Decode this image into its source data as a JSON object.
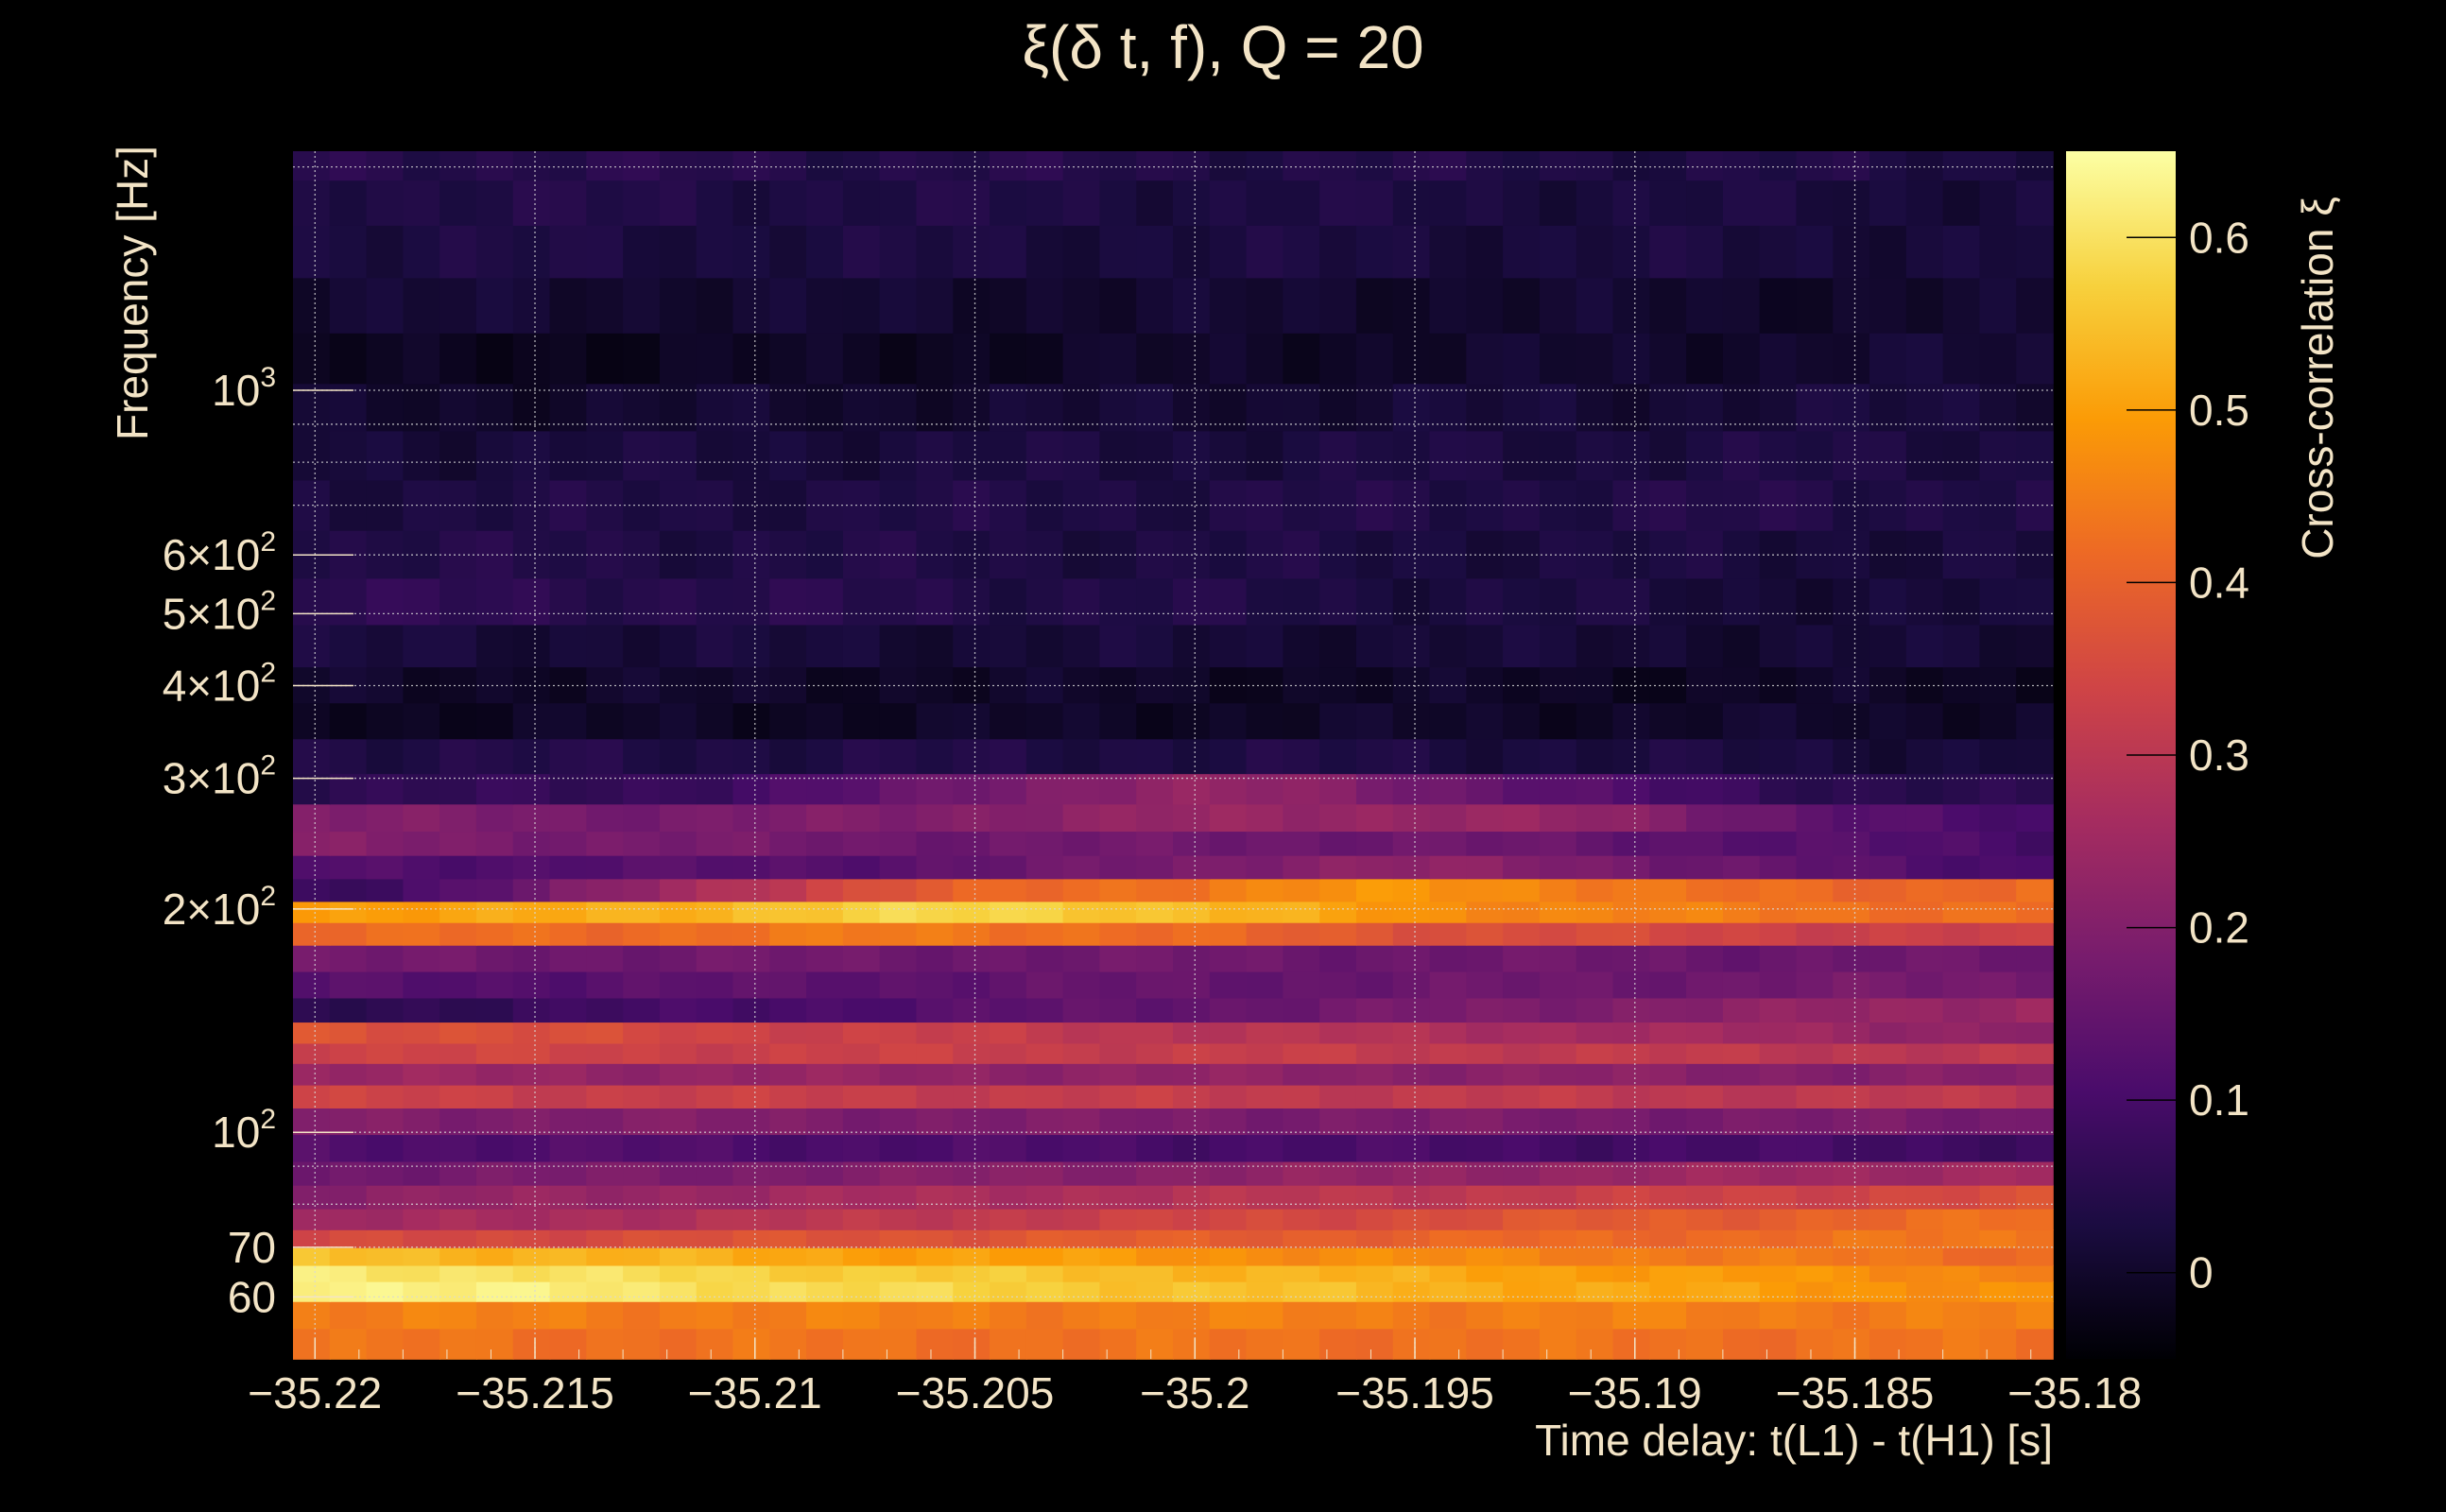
{
  "chart_data": {
    "type": "heatmap",
    "title": "ξ(δ t, f), Q = 20",
    "xlabel": "Time delay: t(L1) - t(H1) [s]",
    "ylabel": "Frequency [Hz]",
    "colorbar_label": "Cross-correlation ξ",
    "xlim": [
      -35.2205,
      -35.1805
    ],
    "ylim": [
      49.5,
      2100
    ],
    "yscale": "log",
    "grid": true,
    "x_ticks": [
      {
        "value": -35.22,
        "label": "−35.22"
      },
      {
        "value": -35.215,
        "label": "−35.215"
      },
      {
        "value": -35.21,
        "label": "−35.21"
      },
      {
        "value": -35.205,
        "label": "−35.205"
      },
      {
        "value": -35.2,
        "label": "−35.2"
      },
      {
        "value": -35.195,
        "label": "−35.195"
      },
      {
        "value": -35.19,
        "label": "−35.19"
      },
      {
        "value": -35.185,
        "label": "−35.185"
      },
      {
        "value": -35.18,
        "label": "−35.18"
      }
    ],
    "y_ticks": [
      {
        "value": 60,
        "label": "60"
      },
      {
        "value": 70,
        "label": "70"
      },
      {
        "value": 100,
        "label": "10",
        "sup": "2"
      },
      {
        "value": 200,
        "label": "2×10",
        "sup": "2"
      },
      {
        "value": 300,
        "label": "3×10",
        "sup": "2"
      },
      {
        "value": 400,
        "label": "4×10",
        "sup": "2"
      },
      {
        "value": 500,
        "label": "5×10",
        "sup": "2"
      },
      {
        "value": 600,
        "label": "6×10",
        "sup": "2"
      },
      {
        "value": 1000,
        "label": "10",
        "sup": "3"
      }
    ],
    "y_minor_grid": [
      80,
      90,
      700,
      800,
      900,
      2000
    ],
    "colorbar": {
      "range": [
        -0.05,
        0.65
      ],
      "ticks": [
        {
          "value": 0,
          "label": "0"
        },
        {
          "value": 0.1,
          "label": "0.1"
        },
        {
          "value": 0.2,
          "label": "0.2"
        },
        {
          "value": 0.3,
          "label": "0.3"
        },
        {
          "value": 0.4,
          "label": "0.4"
        },
        {
          "value": 0.5,
          "label": "0.5"
        },
        {
          "value": 0.6,
          "label": "0.6"
        }
      ],
      "colormap": "inferno",
      "colors": [
        "#000004",
        "#1b0c41",
        "#4a0c6b",
        "#781c6d",
        "#a52c60",
        "#cf4446",
        "#ed6925",
        "#fb9b06",
        "#f7d13d",
        "#fcffa4"
      ]
    },
    "band_profile": [
      {
        "f": 52,
        "start": 0.43,
        "end": 0.43
      },
      {
        "f": 57,
        "start": 0.45,
        "end": 0.45
      },
      {
        "f": 61.5,
        "start": 0.64,
        "end": 0.47
      },
      {
        "f": 64.5,
        "start": 0.62,
        "end": 0.46
      },
      {
        "f": 68,
        "start": 0.55,
        "end": 0.42
      },
      {
        "f": 72,
        "start": 0.34,
        "end": 0.44
      },
      {
        "f": 76,
        "start": 0.24,
        "end": 0.43
      },
      {
        "f": 82,
        "start": 0.21,
        "end": 0.36
      },
      {
        "f": 88,
        "start": 0.17,
        "end": 0.26
      },
      {
        "f": 95,
        "start": 0.12,
        "end": 0.09
      },
      {
        "f": 104,
        "start": 0.2,
        "end": 0.18
      },
      {
        "f": 112,
        "start": 0.33,
        "end": 0.3
      },
      {
        "f": 120,
        "start": 0.24,
        "end": 0.2
      },
      {
        "f": 128,
        "start": 0.34,
        "end": 0.3
      },
      {
        "f": 136,
        "start": 0.38,
        "end": 0.22
      },
      {
        "f": 146,
        "start": 0.05,
        "end": 0.25
      },
      {
        "f": 158,
        "start": 0.12,
        "end": 0.18
      },
      {
        "f": 172,
        "start": 0.17,
        "end": 0.16
      },
      {
        "f": 186,
        "start": 0.42,
        "end": 0.32
      },
      {
        "f": 198,
        "start": 0.5,
        "end": 0.42
      },
      {
        "f": 212,
        "start": 0.06,
        "end": 0.43
      },
      {
        "f": 228,
        "start": 0.12,
        "end": 0.1
      },
      {
        "f": 245,
        "start": 0.2,
        "end": 0.1
      },
      {
        "f": 265,
        "start": 0.2,
        "end": 0.08
      },
      {
        "f": 290,
        "start": 0.06,
        "end": 0.04
      },
      {
        "f": 320,
        "start": 0.04,
        "end": 0.02
      },
      {
        "f": 360,
        "start": -0.01,
        "end": 0.0
      },
      {
        "f": 400,
        "start": 0.0,
        "end": -0.01
      },
      {
        "f": 450,
        "start": 0.02,
        "end": 0.01
      },
      {
        "f": 520,
        "start": 0.06,
        "end": 0.01
      },
      {
        "f": 600,
        "start": 0.04,
        "end": 0.02
      },
      {
        "f": 700,
        "start": 0.03,
        "end": 0.04
      },
      {
        "f": 820,
        "start": 0.02,
        "end": 0.03
      },
      {
        "f": 950,
        "start": 0.0,
        "end": 0.02
      },
      {
        "f": 1100,
        "start": -0.02,
        "end": 0.01
      },
      {
        "f": 1300,
        "start": 0.01,
        "end": 0.0
      },
      {
        "f": 1550,
        "start": 0.03,
        "end": 0.02
      },
      {
        "f": 1800,
        "start": 0.04,
        "end": 0.02
      },
      {
        "f": 2050,
        "start": 0.05,
        "end": 0.03
      }
    ],
    "bumps": [
      {
        "f": 200,
        "t": -35.205,
        "value": 0.58
      },
      {
        "f": 212,
        "t": -35.195,
        "value": 0.48
      },
      {
        "f": 280,
        "t": -35.2,
        "value": 0.28
      },
      {
        "f": 265,
        "t": -35.195,
        "value": 0.24
      }
    ]
  }
}
